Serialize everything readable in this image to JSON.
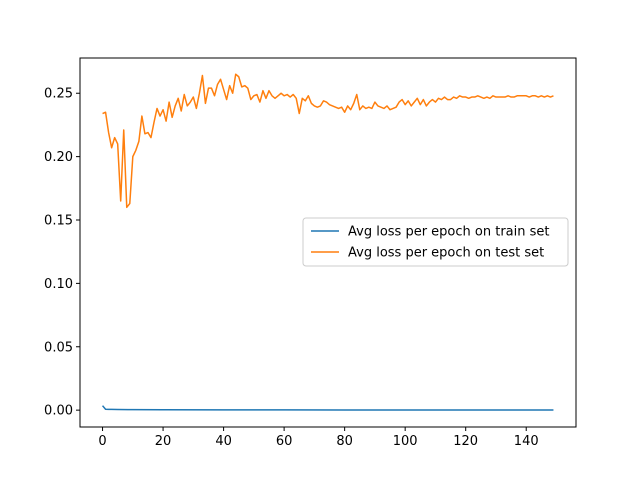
{
  "chart_data": {
    "type": "line",
    "title": "",
    "xlabel": "",
    "ylabel": "",
    "xlim": [
      -7.45,
      156.45
    ],
    "ylim": [
      -0.0133,
      0.2778
    ],
    "grid": false,
    "legend_placement": "center-right",
    "x_ticks": [
      "0",
      "20",
      "40",
      "60",
      "80",
      "100",
      "120",
      "140"
    ],
    "x_tick_values": [
      0,
      20,
      40,
      60,
      80,
      100,
      120,
      140
    ],
    "y_ticks": [
      "0.00",
      "0.05",
      "0.10",
      "0.15",
      "0.20",
      "0.25"
    ],
    "y_tick_values": [
      0.0,
      0.05,
      0.1,
      0.15,
      0.2,
      0.25
    ],
    "series": [
      {
        "name": "Avg loss per epoch on train set",
        "color": "#1f77b4",
        "x": [
          0,
          1,
          2,
          3,
          5,
          10,
          20,
          40,
          60,
          80,
          100,
          120,
          140,
          149
        ],
        "y": [
          0.0035,
          0.0007,
          0.0006,
          0.0006,
          0.0005,
          0.0004,
          0.0003,
          0.0002,
          0.0002,
          0.0001,
          0.0001,
          0.0001,
          0.0001,
          0.0001
        ]
      },
      {
        "name": "Avg loss per epoch on test set",
        "color": "#ff7f0e",
        "x": [
          0,
          1,
          2,
          3,
          4,
          5,
          6,
          7,
          8,
          9,
          10,
          11,
          12,
          13,
          14,
          15,
          16,
          17,
          18,
          19,
          20,
          21,
          22,
          23,
          24,
          25,
          26,
          27,
          28,
          29,
          30,
          31,
          32,
          33,
          34,
          35,
          36,
          37,
          38,
          39,
          40,
          41,
          42,
          43,
          44,
          45,
          46,
          47,
          48,
          49,
          50,
          51,
          52,
          53,
          54,
          55,
          56,
          57,
          58,
          59,
          60,
          61,
          62,
          63,
          64,
          65,
          66,
          67,
          68,
          69,
          70,
          71,
          72,
          73,
          74,
          75,
          76,
          77,
          78,
          79,
          80,
          81,
          82,
          83,
          84,
          85,
          86,
          87,
          88,
          89,
          90,
          91,
          92,
          93,
          94,
          95,
          96,
          97,
          98,
          99,
          100,
          101,
          102,
          103,
          104,
          105,
          106,
          107,
          108,
          109,
          110,
          111,
          112,
          113,
          114,
          115,
          116,
          117,
          118,
          119,
          120,
          121,
          122,
          123,
          124,
          125,
          126,
          127,
          128,
          129,
          130,
          131,
          132,
          133,
          134,
          135,
          136,
          137,
          138,
          139,
          140,
          141,
          142,
          143,
          144,
          145,
          146,
          147,
          148,
          149
        ],
        "y": [
          0.234,
          0.235,
          0.219,
          0.207,
          0.215,
          0.21,
          0.165,
          0.221,
          0.16,
          0.163,
          0.2,
          0.205,
          0.212,
          0.232,
          0.218,
          0.219,
          0.215,
          0.227,
          0.238,
          0.232,
          0.237,
          0.228,
          0.243,
          0.231,
          0.24,
          0.246,
          0.236,
          0.249,
          0.24,
          0.243,
          0.247,
          0.238,
          0.25,
          0.264,
          0.242,
          0.254,
          0.254,
          0.248,
          0.257,
          0.261,
          0.253,
          0.245,
          0.256,
          0.25,
          0.265,
          0.263,
          0.255,
          0.256,
          0.254,
          0.245,
          0.248,
          0.249,
          0.243,
          0.252,
          0.246,
          0.252,
          0.248,
          0.246,
          0.248,
          0.25,
          0.248,
          0.249,
          0.247,
          0.249,
          0.246,
          0.234,
          0.246,
          0.244,
          0.248,
          0.242,
          0.24,
          0.239,
          0.24,
          0.244,
          0.243,
          0.241,
          0.24,
          0.239,
          0.238,
          0.239,
          0.235,
          0.24,
          0.237,
          0.242,
          0.249,
          0.237,
          0.24,
          0.238,
          0.239,
          0.238,
          0.243,
          0.24,
          0.239,
          0.238,
          0.24,
          0.237,
          0.238,
          0.239,
          0.243,
          0.245,
          0.241,
          0.244,
          0.24,
          0.243,
          0.246,
          0.241,
          0.245,
          0.24,
          0.243,
          0.245,
          0.243,
          0.246,
          0.245,
          0.247,
          0.245,
          0.245,
          0.247,
          0.246,
          0.248,
          0.247,
          0.247,
          0.246,
          0.247,
          0.247,
          0.248,
          0.247,
          0.246,
          0.247,
          0.246,
          0.248,
          0.247,
          0.247,
          0.247,
          0.247,
          0.248,
          0.247,
          0.247,
          0.248,
          0.248,
          0.248,
          0.248,
          0.247,
          0.248,
          0.248,
          0.247,
          0.248,
          0.247,
          0.248,
          0.247,
          0.248
        ]
      }
    ]
  }
}
